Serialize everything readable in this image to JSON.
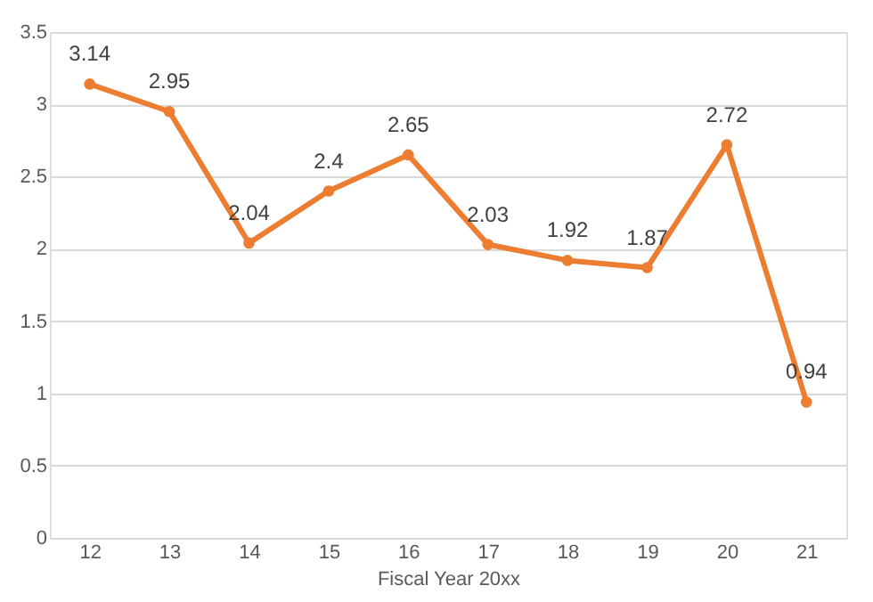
{
  "chart_data": {
    "type": "line",
    "xlabel": "Fiscal Year 20xx",
    "categories": [
      "12",
      "13",
      "14",
      "15",
      "16",
      "17",
      "18",
      "19",
      "20",
      "21"
    ],
    "series": [
      {
        "color": "#ed7d31",
        "values": [
          3.14,
          2.95,
          2.04,
          2.4,
          2.65,
          2.03,
          1.92,
          1.87,
          2.72,
          0.94
        ]
      }
    ],
    "ylim": [
      0,
      3.5
    ],
    "yticks": [
      0,
      0.5,
      1,
      1.5,
      2,
      2.5,
      3,
      3.5
    ],
    "grid": "y",
    "marker": "circle",
    "line_style": "solid",
    "data_labels": true
  }
}
